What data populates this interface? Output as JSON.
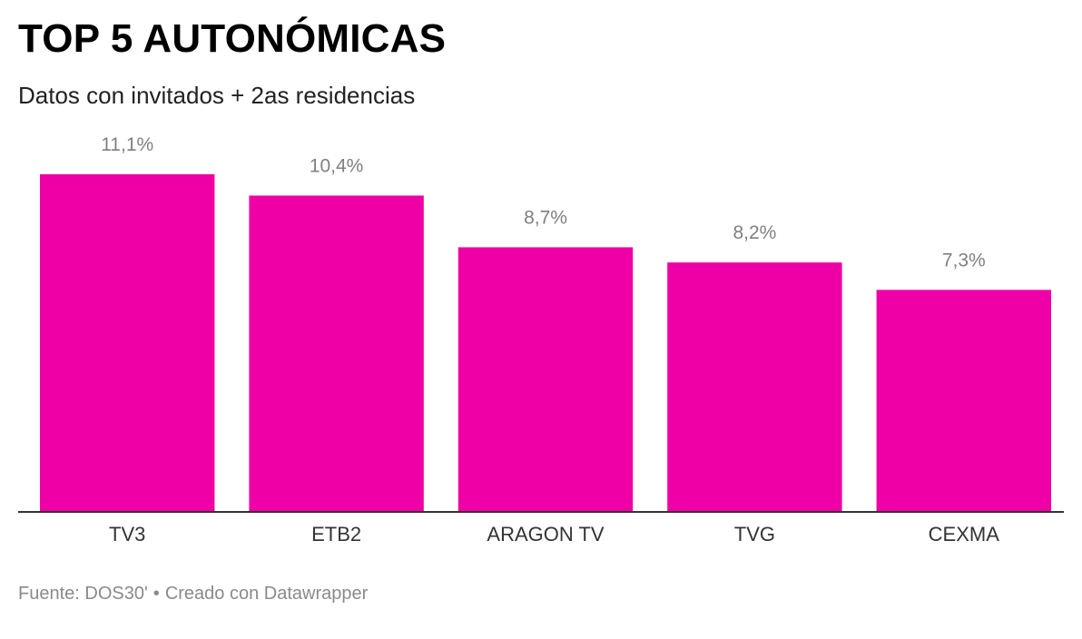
{
  "header": {
    "title": "TOP 5 AUTONÓMICAS",
    "subtitle": "Datos con invitados + 2as residencias"
  },
  "footer": {
    "source": "Fuente: DOS30'",
    "separator": "•",
    "credit": "Creado con Datawrapper"
  },
  "colors": {
    "bar": "#ee00a6",
    "value_label": "#808080",
    "axis_line": "#333333",
    "category_label": "#333333"
  },
  "chart_data": {
    "type": "bar",
    "title": "TOP 5 AUTONÓMICAS",
    "subtitle": "Datos con invitados + 2as residencias",
    "categories": [
      "TV3",
      "ETB2",
      "ARAGON TV",
      "TVG",
      "CEXMA"
    ],
    "values": [
      11.1,
      10.4,
      8.7,
      8.2,
      7.3
    ],
    "value_labels": [
      "11,1%",
      "10,4%",
      "8,7%",
      "8,2%",
      "7,3%"
    ],
    "unit": "%",
    "ylim": [
      0,
      11.1
    ],
    "grid": false,
    "legend": "none"
  }
}
